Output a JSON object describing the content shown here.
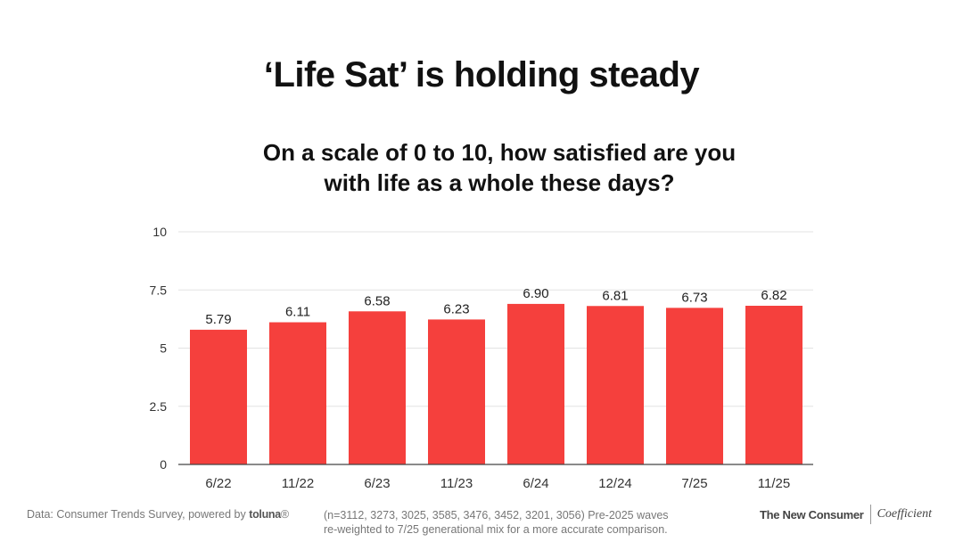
{
  "title": "‘Life Sat’ is holding steady",
  "subtitle": {
    "line1": "On a scale of 0 to 10, how satisfied are you",
    "line2": "with life as a whole these days?"
  },
  "chart_data": {
    "type": "bar",
    "categories": [
      "6/22",
      "11/22",
      "6/23",
      "11/23",
      "6/24",
      "12/24",
      "7/25",
      "11/25"
    ],
    "values": [
      5.79,
      6.11,
      6.58,
      6.23,
      6.9,
      6.81,
      6.73,
      6.82
    ],
    "value_labels": [
      "5.79",
      "6.11",
      "6.58",
      "6.23",
      "6.90",
      "6.81",
      "6.73",
      "6.82"
    ],
    "ylim": [
      0,
      10
    ],
    "yticks": [
      0,
      2.5,
      5,
      7.5,
      10
    ],
    "ytick_labels": [
      "0",
      "2.5",
      "5",
      "7.5",
      "10"
    ],
    "grid": true,
    "colors": {
      "bar": "#f5403d",
      "grid": "#e3e3e3",
      "axis": "#444444",
      "tick_text": "#333333",
      "label_text": "#222222"
    }
  },
  "footer": {
    "source_prefix": "Data: Consumer Trends Survey, powered by ",
    "source_brand": "toluna",
    "source_brand_mark": "®",
    "note_line1": "(n=3112, 3273, 3025, 3585, 3476, 3452, 3201, 3056) Pre-2025 waves",
    "note_line2": "re-weighted to 7/25 generational mix for a more accurate comparison.",
    "brand_1": "The New Consumer",
    "brand_2": "Coefficient"
  }
}
